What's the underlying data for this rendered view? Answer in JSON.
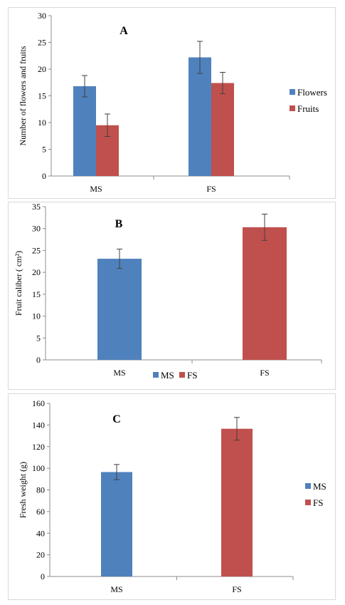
{
  "chart_data": [
    {
      "type": "bar",
      "title": "A",
      "ylabel": "Number of flowers and fruits",
      "xlabel": "",
      "categories": [
        "MS",
        "FS"
      ],
      "ylim": [
        0,
        30
      ],
      "yticks": [
        0,
        5,
        10,
        15,
        20,
        25,
        30
      ],
      "legend": "right",
      "series": [
        {
          "name": "Flowers",
          "color": "#4f81bd",
          "values": [
            16.8,
            22.2
          ],
          "errors": [
            2.0,
            3.0
          ]
        },
        {
          "name": "Fruits",
          "color": "#c0504d",
          "values": [
            9.5,
            17.4
          ],
          "errors": [
            2.1,
            2.0
          ]
        }
      ]
    },
    {
      "type": "bar",
      "title": "B",
      "ylabel": "Fruit caliber ( cm²)",
      "xlabel": "",
      "categories": [
        "MS",
        "FS"
      ],
      "ylim": [
        0,
        35
      ],
      "yticks": [
        0,
        5,
        10,
        15,
        20,
        25,
        30,
        35
      ],
      "legend": "bottom",
      "series": [
        {
          "name": "MS",
          "color": "#4f81bd",
          "values": [
            23.1,
            null
          ],
          "errors": [
            2.2,
            null
          ]
        },
        {
          "name": "FS",
          "color": "#c0504d",
          "values": [
            null,
            30.3
          ],
          "errors": [
            null,
            3.0
          ]
        }
      ]
    },
    {
      "type": "bar",
      "title": "C",
      "ylabel": "Fresh weight (g)",
      "xlabel": "",
      "categories": [
        "MS",
        "FS"
      ],
      "ylim": [
        0,
        160
      ],
      "yticks": [
        0,
        20,
        40,
        60,
        80,
        100,
        120,
        140,
        160
      ],
      "legend": "right",
      "series": [
        {
          "name": "MS",
          "color": "#4f81bd",
          "values": [
            96.5,
            null
          ],
          "errors": [
            7.0,
            null
          ]
        },
        {
          "name": "FS",
          "color": "#c0504d",
          "values": [
            null,
            136.5
          ],
          "errors": [
            null,
            10.5
          ]
        }
      ]
    }
  ]
}
